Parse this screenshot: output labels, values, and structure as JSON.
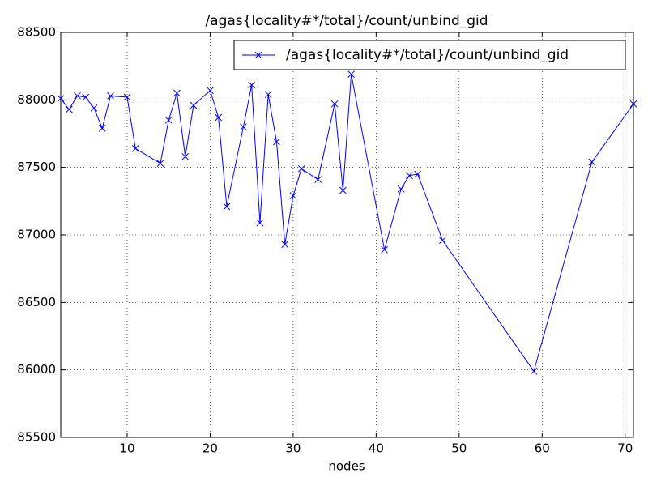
{
  "chart_data": {
    "type": "line",
    "title": "/agas{locality#*/total}/count/unbind_gid",
    "x_label": "nodes",
    "x": [
      2,
      3,
      4,
      5,
      6,
      7,
      8,
      10,
      11,
      14,
      15,
      16,
      17,
      18,
      20,
      21,
      22,
      24,
      25,
      26,
      27,
      28,
      29,
      30,
      31,
      33,
      35,
      36,
      37,
      41,
      43,
      44,
      45,
      48,
      59,
      66,
      71
    ],
    "series": [
      {
        "name": "/agas{locality#*/total}/count/unbind_gid",
        "color": "#0000ff",
        "values": [
          88010,
          87930,
          88030,
          88020,
          87940,
          87790,
          88030,
          88020,
          87640,
          87530,
          87850,
          88050,
          87580,
          87960,
          88070,
          87870,
          87210,
          87800,
          88110,
          87090,
          88040,
          87690,
          86930,
          87290,
          87490,
          87410,
          87970,
          87330,
          88190,
          86890,
          87340,
          87440,
          87450,
          86960,
          85990,
          87540,
          87970
        ]
      }
    ],
    "xlim": [
      2,
      71
    ],
    "xticks": [
      10,
      20,
      30,
      40,
      50,
      60,
      70
    ],
    "ylim": [
      85500,
      88500
    ],
    "yticks": [
      85500,
      86000,
      86500,
      87000,
      87500,
      88000,
      88500
    ],
    "grid": true,
    "legend": "upper right",
    "marker": "x"
  }
}
